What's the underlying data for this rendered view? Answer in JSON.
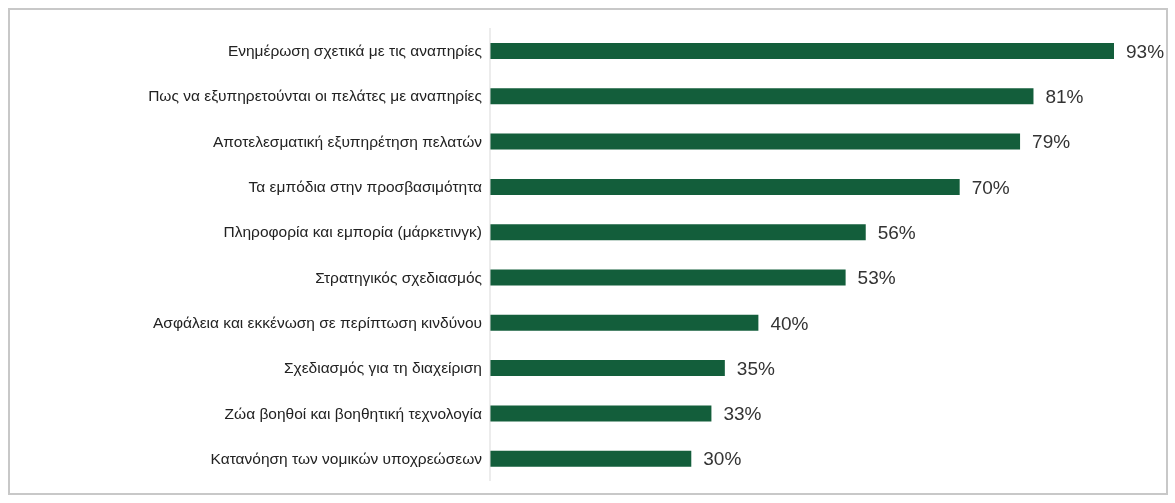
{
  "chart_data": {
    "type": "bar",
    "orientation": "horizontal",
    "categories": [
      "Ενημέρωση σχετικά με τις αναπηρίες",
      "Πως να εξυπηρετούνται οι πελάτες με αναπηρίες",
      "Αποτελεσματική εξυπηρέτηση πελατών",
      "Τα εμπόδια στην προσβασιμότητα",
      "Πληροφορία και εμπορία (μάρκετινγκ)",
      "Στρατηγικός σχεδιασμός",
      "Ασφάλεια και εκκένωση σε περίπτωση κινδύνου",
      "Σχεδιασμός για τη διαχείριση",
      "Ζώα βοηθοί και βοηθητική τεχνολογία",
      "Κατανόηση των νομικών υποχρεώσεων"
    ],
    "values": [
      93,
      81,
      79,
      70,
      56,
      53,
      40,
      35,
      33,
      30
    ],
    "value_labels": [
      "93%",
      "81%",
      "79%",
      "70%",
      "56%",
      "53%",
      "40%",
      "35%",
      "33%",
      "30%"
    ],
    "color": "#135e3b"
  }
}
